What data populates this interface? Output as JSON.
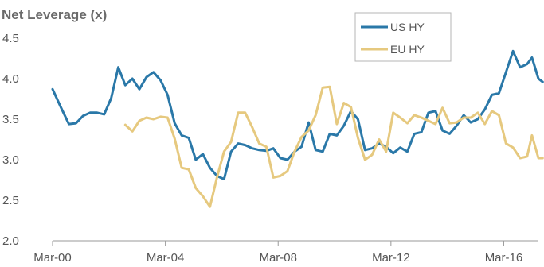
{
  "chart_data": {
    "type": "line",
    "title": "Net Leverage (x)",
    "xlabel": "",
    "ylabel": "",
    "x_ticks": [
      "Mar-00",
      "Mar-04",
      "Mar-08",
      "Mar-12",
      "Mar-16"
    ],
    "y_ticks": [
      "2.0",
      "2.5",
      "3.0",
      "3.5",
      "4.0",
      "4.5"
    ],
    "ylim": [
      2.0,
      4.5
    ],
    "xlim": [
      2000.17,
      2017.4
    ],
    "grid": false,
    "legend": "top-center",
    "series": [
      {
        "name": "US HY",
        "color": "#2a78a8",
        "points": [
          [
            2000.17,
            3.87
          ],
          [
            2000.5,
            3.62
          ],
          [
            2000.75,
            3.44
          ],
          [
            2001.0,
            3.45
          ],
          [
            2001.25,
            3.54
          ],
          [
            2001.5,
            3.58
          ],
          [
            2001.75,
            3.58
          ],
          [
            2002.0,
            3.56
          ],
          [
            2002.25,
            3.76
          ],
          [
            2002.5,
            4.14
          ],
          [
            2002.75,
            3.92
          ],
          [
            2003.0,
            4.0
          ],
          [
            2003.25,
            3.87
          ],
          [
            2003.5,
            4.02
          ],
          [
            2003.75,
            4.08
          ],
          [
            2004.0,
            3.98
          ],
          [
            2004.25,
            3.8
          ],
          [
            2004.5,
            3.45
          ],
          [
            2004.75,
            3.3
          ],
          [
            2005.0,
            3.27
          ],
          [
            2005.25,
            3.0
          ],
          [
            2005.5,
            3.07
          ],
          [
            2005.75,
            2.9
          ],
          [
            2006.0,
            2.8
          ],
          [
            2006.25,
            2.76
          ],
          [
            2006.5,
            3.1
          ],
          [
            2006.75,
            3.2
          ],
          [
            2007.0,
            3.18
          ],
          [
            2007.25,
            3.14
          ],
          [
            2007.5,
            3.12
          ],
          [
            2007.75,
            3.11
          ],
          [
            2008.0,
            3.14
          ],
          [
            2008.25,
            3.02
          ],
          [
            2008.5,
            3.0
          ],
          [
            2008.75,
            3.1
          ],
          [
            2009.0,
            3.16
          ],
          [
            2009.25,
            3.46
          ],
          [
            2009.5,
            3.12
          ],
          [
            2009.75,
            3.1
          ],
          [
            2010.0,
            3.32
          ],
          [
            2010.25,
            3.3
          ],
          [
            2010.5,
            3.42
          ],
          [
            2010.75,
            3.6
          ],
          [
            2011.0,
            3.5
          ],
          [
            2011.25,
            3.12
          ],
          [
            2011.5,
            3.14
          ],
          [
            2011.75,
            3.2
          ],
          [
            2012.0,
            3.16
          ],
          [
            2012.25,
            3.08
          ],
          [
            2012.5,
            3.15
          ],
          [
            2012.75,
            3.1
          ],
          [
            2013.0,
            3.32
          ],
          [
            2013.25,
            3.34
          ],
          [
            2013.5,
            3.58
          ],
          [
            2013.75,
            3.6
          ],
          [
            2014.0,
            3.36
          ],
          [
            2014.25,
            3.32
          ],
          [
            2014.5,
            3.42
          ],
          [
            2014.75,
            3.55
          ],
          [
            2015.0,
            3.46
          ],
          [
            2015.25,
            3.5
          ],
          [
            2015.5,
            3.62
          ],
          [
            2015.75,
            3.8
          ],
          [
            2016.0,
            3.82
          ],
          [
            2016.25,
            4.08
          ],
          [
            2016.5,
            4.34
          ],
          [
            2016.75,
            4.14
          ],
          [
            2017.0,
            4.18
          ],
          [
            2017.17,
            4.26
          ],
          [
            2017.4,
            4.0
          ],
          [
            2017.55,
            3.96
          ]
        ]
      },
      {
        "name": "EU HY",
        "color": "#e6c97f",
        "points": [
          [
            2002.75,
            3.43
          ],
          [
            2003.0,
            3.35
          ],
          [
            2003.25,
            3.48
          ],
          [
            2003.5,
            3.52
          ],
          [
            2003.75,
            3.5
          ],
          [
            2004.0,
            3.53
          ],
          [
            2004.25,
            3.52
          ],
          [
            2004.5,
            3.26
          ],
          [
            2004.75,
            2.9
          ],
          [
            2005.0,
            2.88
          ],
          [
            2005.25,
            2.65
          ],
          [
            2005.5,
            2.55
          ],
          [
            2005.75,
            2.42
          ],
          [
            2006.0,
            2.78
          ],
          [
            2006.25,
            3.1
          ],
          [
            2006.5,
            3.22
          ],
          [
            2006.75,
            3.58
          ],
          [
            2007.0,
            3.58
          ],
          [
            2007.25,
            3.4
          ],
          [
            2007.5,
            3.2
          ],
          [
            2007.75,
            3.16
          ],
          [
            2008.0,
            2.78
          ],
          [
            2008.25,
            2.8
          ],
          [
            2008.5,
            2.86
          ],
          [
            2008.75,
            3.1
          ],
          [
            2009.0,
            3.28
          ],
          [
            2009.25,
            3.36
          ],
          [
            2009.5,
            3.55
          ],
          [
            2009.75,
            3.89
          ],
          [
            2010.0,
            3.9
          ],
          [
            2010.25,
            3.44
          ],
          [
            2010.5,
            3.7
          ],
          [
            2010.75,
            3.65
          ],
          [
            2011.0,
            3.27
          ],
          [
            2011.25,
            3.0
          ],
          [
            2011.5,
            3.06
          ],
          [
            2011.75,
            3.25
          ],
          [
            2012.0,
            3.1
          ],
          [
            2012.25,
            3.58
          ],
          [
            2012.5,
            3.52
          ],
          [
            2012.75,
            3.45
          ],
          [
            2013.0,
            3.55
          ],
          [
            2013.25,
            3.52
          ],
          [
            2013.5,
            3.48
          ],
          [
            2013.75,
            3.44
          ],
          [
            2014.0,
            3.64
          ],
          [
            2014.25,
            3.45
          ],
          [
            2014.5,
            3.46
          ],
          [
            2014.75,
            3.52
          ],
          [
            2015.0,
            3.52
          ],
          [
            2015.25,
            3.58
          ],
          [
            2015.5,
            3.44
          ],
          [
            2015.75,
            3.6
          ],
          [
            2016.0,
            3.55
          ],
          [
            2016.25,
            3.2
          ],
          [
            2016.5,
            3.15
          ],
          [
            2016.75,
            3.02
          ],
          [
            2017.0,
            3.04
          ],
          [
            2017.17,
            3.3
          ],
          [
            2017.4,
            3.02
          ],
          [
            2017.55,
            3.02
          ]
        ]
      }
    ]
  }
}
